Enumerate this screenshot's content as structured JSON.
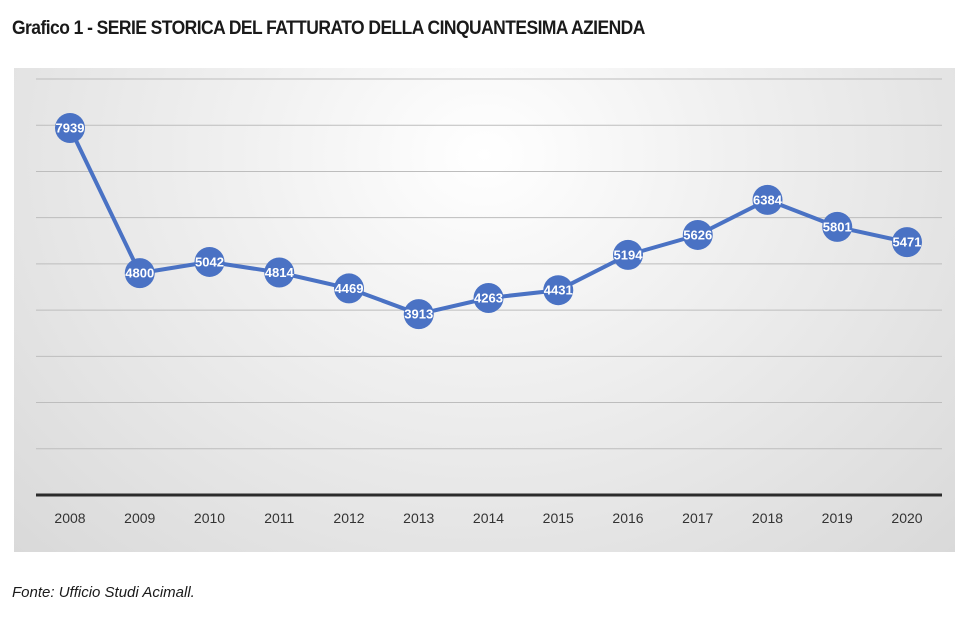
{
  "title": "Grafico 1 - SERIE STORICA DEL FATTURATO DELLA CINQUANTESIMA AZIENDA",
  "source": "Fonte: Ufficio Studi Acimall.",
  "colors": {
    "line": "#4a72c4",
    "marker": "#4a72c4",
    "label": "#ffffff",
    "grid": "#bdbdbd",
    "axis": "#2b2b2b"
  },
  "chart_data": {
    "type": "line",
    "title": "Grafico 1 - SERIE STORICA DEL FATTURATO DELLA CINQUANTESIMA AZIENDA",
    "xlabel": "",
    "ylabel": "",
    "categories": [
      "2008",
      "2009",
      "2010",
      "2011",
      "2012",
      "2013",
      "2014",
      "2015",
      "2016",
      "2017",
      "2018",
      "2019",
      "2020"
    ],
    "series": [
      {
        "values": [
          7939,
          4800,
          5042,
          4814,
          4469,
          3913,
          4263,
          4431,
          5194,
          5626,
          6384,
          5801,
          5471
        ]
      }
    ],
    "ylim": [
      0,
      9000
    ],
    "grid": true,
    "legend": "none",
    "data_labels": true
  }
}
